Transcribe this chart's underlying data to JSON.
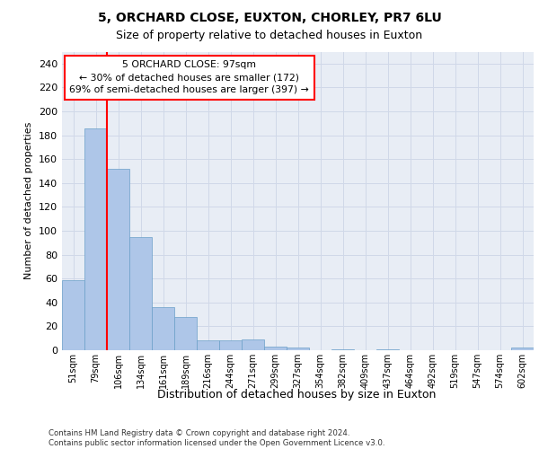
{
  "title1": "5, ORCHARD CLOSE, EUXTON, CHORLEY, PR7 6LU",
  "title2": "Size of property relative to detached houses in Euxton",
  "xlabel": "Distribution of detached houses by size in Euxton",
  "ylabel": "Number of detached properties",
  "categories": [
    "51sqm",
    "79sqm",
    "106sqm",
    "134sqm",
    "161sqm",
    "189sqm",
    "216sqm",
    "244sqm",
    "271sqm",
    "299sqm",
    "327sqm",
    "354sqm",
    "382sqm",
    "409sqm",
    "437sqm",
    "464sqm",
    "492sqm",
    "519sqm",
    "547sqm",
    "574sqm",
    "602sqm"
  ],
  "values": [
    59,
    186,
    152,
    95,
    36,
    28,
    8,
    8,
    9,
    3,
    2,
    0,
    1,
    0,
    1,
    0,
    0,
    0,
    0,
    0,
    2
  ],
  "bar_color": "#aec6e8",
  "bar_edge_color": "#6a9fc8",
  "annotation_text": "5 ORCHARD CLOSE: 97sqm\n← 30% of detached houses are smaller (172)\n69% of semi-detached houses are larger (397) →",
  "annotation_box_color": "white",
  "annotation_box_edge_color": "red",
  "vline_color": "red",
  "grid_color": "#d0d8e8",
  "background_color": "#e8edf5",
  "footer": "Contains HM Land Registry data © Crown copyright and database right 2024.\nContains public sector information licensed under the Open Government Licence v3.0.",
  "ylim": [
    0,
    250
  ],
  "title1_fontsize": 10,
  "title2_fontsize": 9,
  "ylabel_fontsize": 8,
  "xlabel_fontsize": 9
}
